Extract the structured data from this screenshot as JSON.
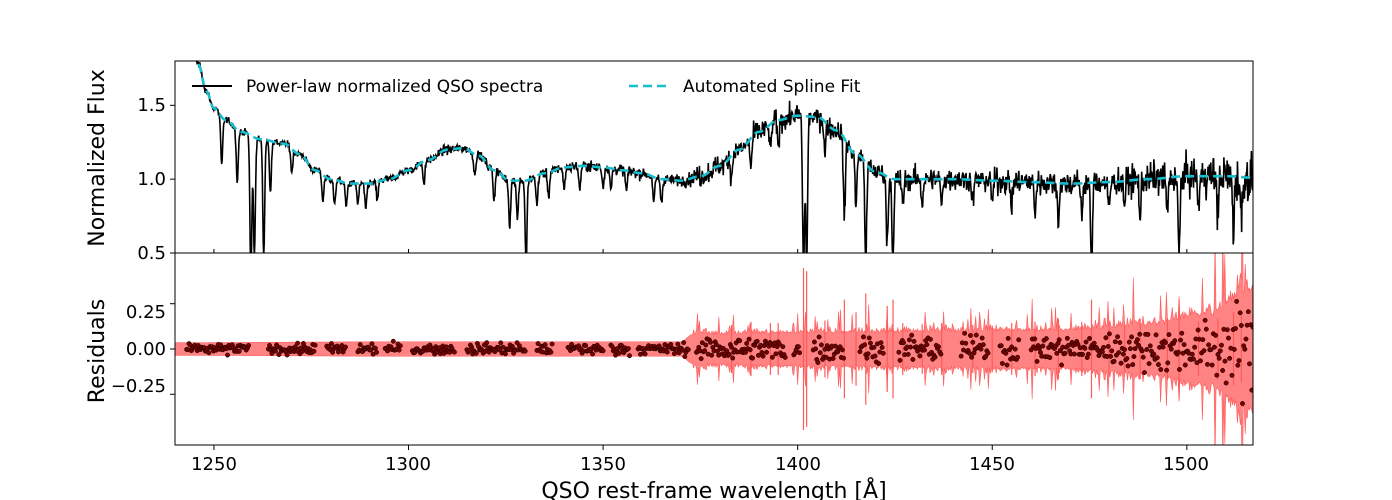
{
  "chart_data": [
    {
      "type": "line",
      "panel": "top",
      "ylabel": "Normalized Flux",
      "xlim": [
        1240,
        1517
      ],
      "ylim": [
        0.5,
        1.8
      ],
      "yticks": [
        0.5,
        1.0,
        1.5
      ],
      "ytick_labels": [
        "0.5",
        "1.0",
        "1.5"
      ],
      "legend": {
        "placement": "top-left",
        "ncol": 2
      },
      "series": [
        {
          "name": "Power-law normalized QSO spectra",
          "color": "#000000",
          "style": "solid",
          "continuum_knots": {
            "x": [
              1243,
              1246,
              1248,
              1250,
              1253,
              1257,
              1262,
              1268,
              1272,
              1276,
              1280,
              1285,
              1290,
              1295,
              1300,
              1305,
              1310,
              1314,
              1318,
              1322,
              1326,
              1330,
              1335,
              1340,
              1345,
              1350,
              1355,
              1360,
              1365,
              1370,
              1375,
              1380,
              1385,
              1390,
              1395,
              1400,
              1405,
              1410,
              1415,
              1420,
              1425,
              1430,
              1440,
              1450,
              1460,
              1470,
              1480,
              1490,
              1500,
              1510,
              1517
            ],
            "y": [
              2.1,
              1.78,
              1.6,
              1.48,
              1.4,
              1.32,
              1.27,
              1.24,
              1.17,
              1.06,
              1.0,
              0.97,
              0.97,
              1.0,
              1.06,
              1.13,
              1.2,
              1.21,
              1.16,
              1.06,
              0.99,
              0.99,
              1.04,
              1.08,
              1.09,
              1.08,
              1.06,
              1.04,
              1.0,
              0.99,
              1.02,
              1.09,
              1.2,
              1.32,
              1.4,
              1.43,
              1.42,
              1.33,
              1.17,
              1.05,
              1.0,
              1.0,
              1.0,
              0.99,
              0.98,
              0.97,
              0.98,
              1.0,
              1.02,
              1.02,
              1.01
            ]
          },
          "absorption_lines": [
            {
              "x": 1252,
              "depth": 0.33
            },
            {
              "x": 1256,
              "depth": 0.35
            },
            {
              "x": 1259.5,
              "depth": 0.95
            },
            {
              "x": 1260.4,
              "depth": 0.8
            },
            {
              "x": 1262.8,
              "depth": 0.78
            },
            {
              "x": 1264.5,
              "depth": 0.35
            },
            {
              "x": 1270,
              "depth": 0.16
            },
            {
              "x": 1278,
              "depth": 0.18
            },
            {
              "x": 1281,
              "depth": 0.18
            },
            {
              "x": 1284,
              "depth": 0.16
            },
            {
              "x": 1287,
              "depth": 0.14
            },
            {
              "x": 1289,
              "depth": 0.18
            },
            {
              "x": 1292,
              "depth": 0.12
            },
            {
              "x": 1304,
              "depth": 0.16
            },
            {
              "x": 1317,
              "depth": 0.14
            },
            {
              "x": 1322,
              "depth": 0.2
            },
            {
              "x": 1326,
              "depth": 0.3
            },
            {
              "x": 1328,
              "depth": 0.25
            },
            {
              "x": 1330.2,
              "depth": 0.55
            },
            {
              "x": 1333,
              "depth": 0.2
            },
            {
              "x": 1336,
              "depth": 0.16
            },
            {
              "x": 1340,
              "depth": 0.15
            },
            {
              "x": 1344,
              "depth": 0.16
            },
            {
              "x": 1350,
              "depth": 0.13
            },
            {
              "x": 1352,
              "depth": 0.15
            },
            {
              "x": 1356,
              "depth": 0.14
            },
            {
              "x": 1363,
              "depth": 0.18
            },
            {
              "x": 1365,
              "depth": 0.16
            },
            {
              "x": 1383,
              "depth": 0.15
            },
            {
              "x": 1388,
              "depth": 0.2
            },
            {
              "x": 1393,
              "depth": 0.18
            },
            {
              "x": 1395,
              "depth": 0.18
            },
            {
              "x": 1401.5,
              "depth": 1.05
            },
            {
              "x": 1402.3,
              "depth": 1.0
            },
            {
              "x": 1407,
              "depth": 0.22
            },
            {
              "x": 1412,
              "depth": 0.55
            },
            {
              "x": 1415,
              "depth": 0.35
            },
            {
              "x": 1417.5,
              "depth": 0.65
            },
            {
              "x": 1423,
              "depth": 0.45
            },
            {
              "x": 1424.5,
              "depth": 0.55
            },
            {
              "x": 1427,
              "depth": 0.18
            },
            {
              "x": 1432,
              "depth": 0.16
            },
            {
              "x": 1437,
              "depth": 0.18
            },
            {
              "x": 1445,
              "depth": 0.15
            },
            {
              "x": 1450,
              "depth": 0.14
            },
            {
              "x": 1455,
              "depth": 0.18
            },
            {
              "x": 1461,
              "depth": 0.2
            },
            {
              "x": 1467,
              "depth": 0.25
            },
            {
              "x": 1473,
              "depth": 0.2
            },
            {
              "x": 1475.5,
              "depth": 0.55
            },
            {
              "x": 1480,
              "depth": 0.2
            },
            {
              "x": 1484,
              "depth": 0.15
            },
            {
              "x": 1488,
              "depth": 0.25
            },
            {
              "x": 1495,
              "depth": 0.25
            },
            {
              "x": 1498,
              "depth": 0.55
            },
            {
              "x": 1503,
              "depth": 0.2
            },
            {
              "x": 1508,
              "depth": 0.25
            },
            {
              "x": 1512,
              "depth": 0.35
            },
            {
              "x": 1514,
              "depth": 0.3
            }
          ],
          "noise_sigma_knots": {
            "x": [
              1240,
              1370,
              1375,
              1420,
              1470,
              1500,
              1517
            ],
            "y": [
              0.015,
              0.025,
              0.05,
              0.05,
              0.06,
              0.08,
              0.12
            ]
          }
        },
        {
          "name": "Automated Spline Fit",
          "color": "#17becf",
          "style": "dashed"
        }
      ]
    },
    {
      "type": "scatter",
      "panel": "bottom",
      "xlabel": "QSO rest-frame wavelength [Å]",
      "ylabel": "Residuals",
      "xlim": [
        1240,
        1517
      ],
      "ylim": [
        -0.53,
        0.53
      ],
      "xticks": [
        1250,
        1300,
        1350,
        1400,
        1450,
        1500
      ],
      "xtick_labels": [
        "1250",
        "1300",
        "1350",
        "1400",
        "1450",
        "1500"
      ],
      "yticks": [
        -0.25,
        0.0,
        0.25
      ],
      "ytick_labels": [
        "−0.25",
        "0.00",
        "0.25"
      ],
      "series": [
        {
          "type": "area",
          "color": "#ff5a5a",
          "sigma_band_knots": {
            "x": [
              1240,
              1300,
              1370,
              1373,
              1420,
              1470,
              1490,
              1505,
              1517
            ],
            "y": [
              0.035,
              0.04,
              0.04,
              0.08,
              0.09,
              0.1,
              0.13,
              0.18,
              0.32
            ]
          }
        },
        {
          "type": "scatter",
          "color": "#7a0000",
          "point_segments": [
            [
              1243,
              1259
            ],
            [
              1264,
              1276
            ],
            [
              1279,
              1284
            ],
            [
              1287,
              1292
            ],
            [
              1294,
              1298
            ],
            [
              1301,
              1312
            ],
            [
              1315,
              1330
            ],
            [
              1333,
              1337
            ],
            [
              1341,
              1350
            ],
            [
              1352,
              1357
            ],
            [
              1359,
              1372
            ],
            [
              1374,
              1397
            ],
            [
              1399,
              1400.5
            ],
            [
              1404,
              1412
            ],
            [
              1416,
              1422
            ],
            [
              1426,
              1437
            ],
            [
              1442,
              1449
            ],
            [
              1452,
              1457
            ],
            [
              1460,
              1517
            ]
          ]
        }
      ]
    }
  ]
}
